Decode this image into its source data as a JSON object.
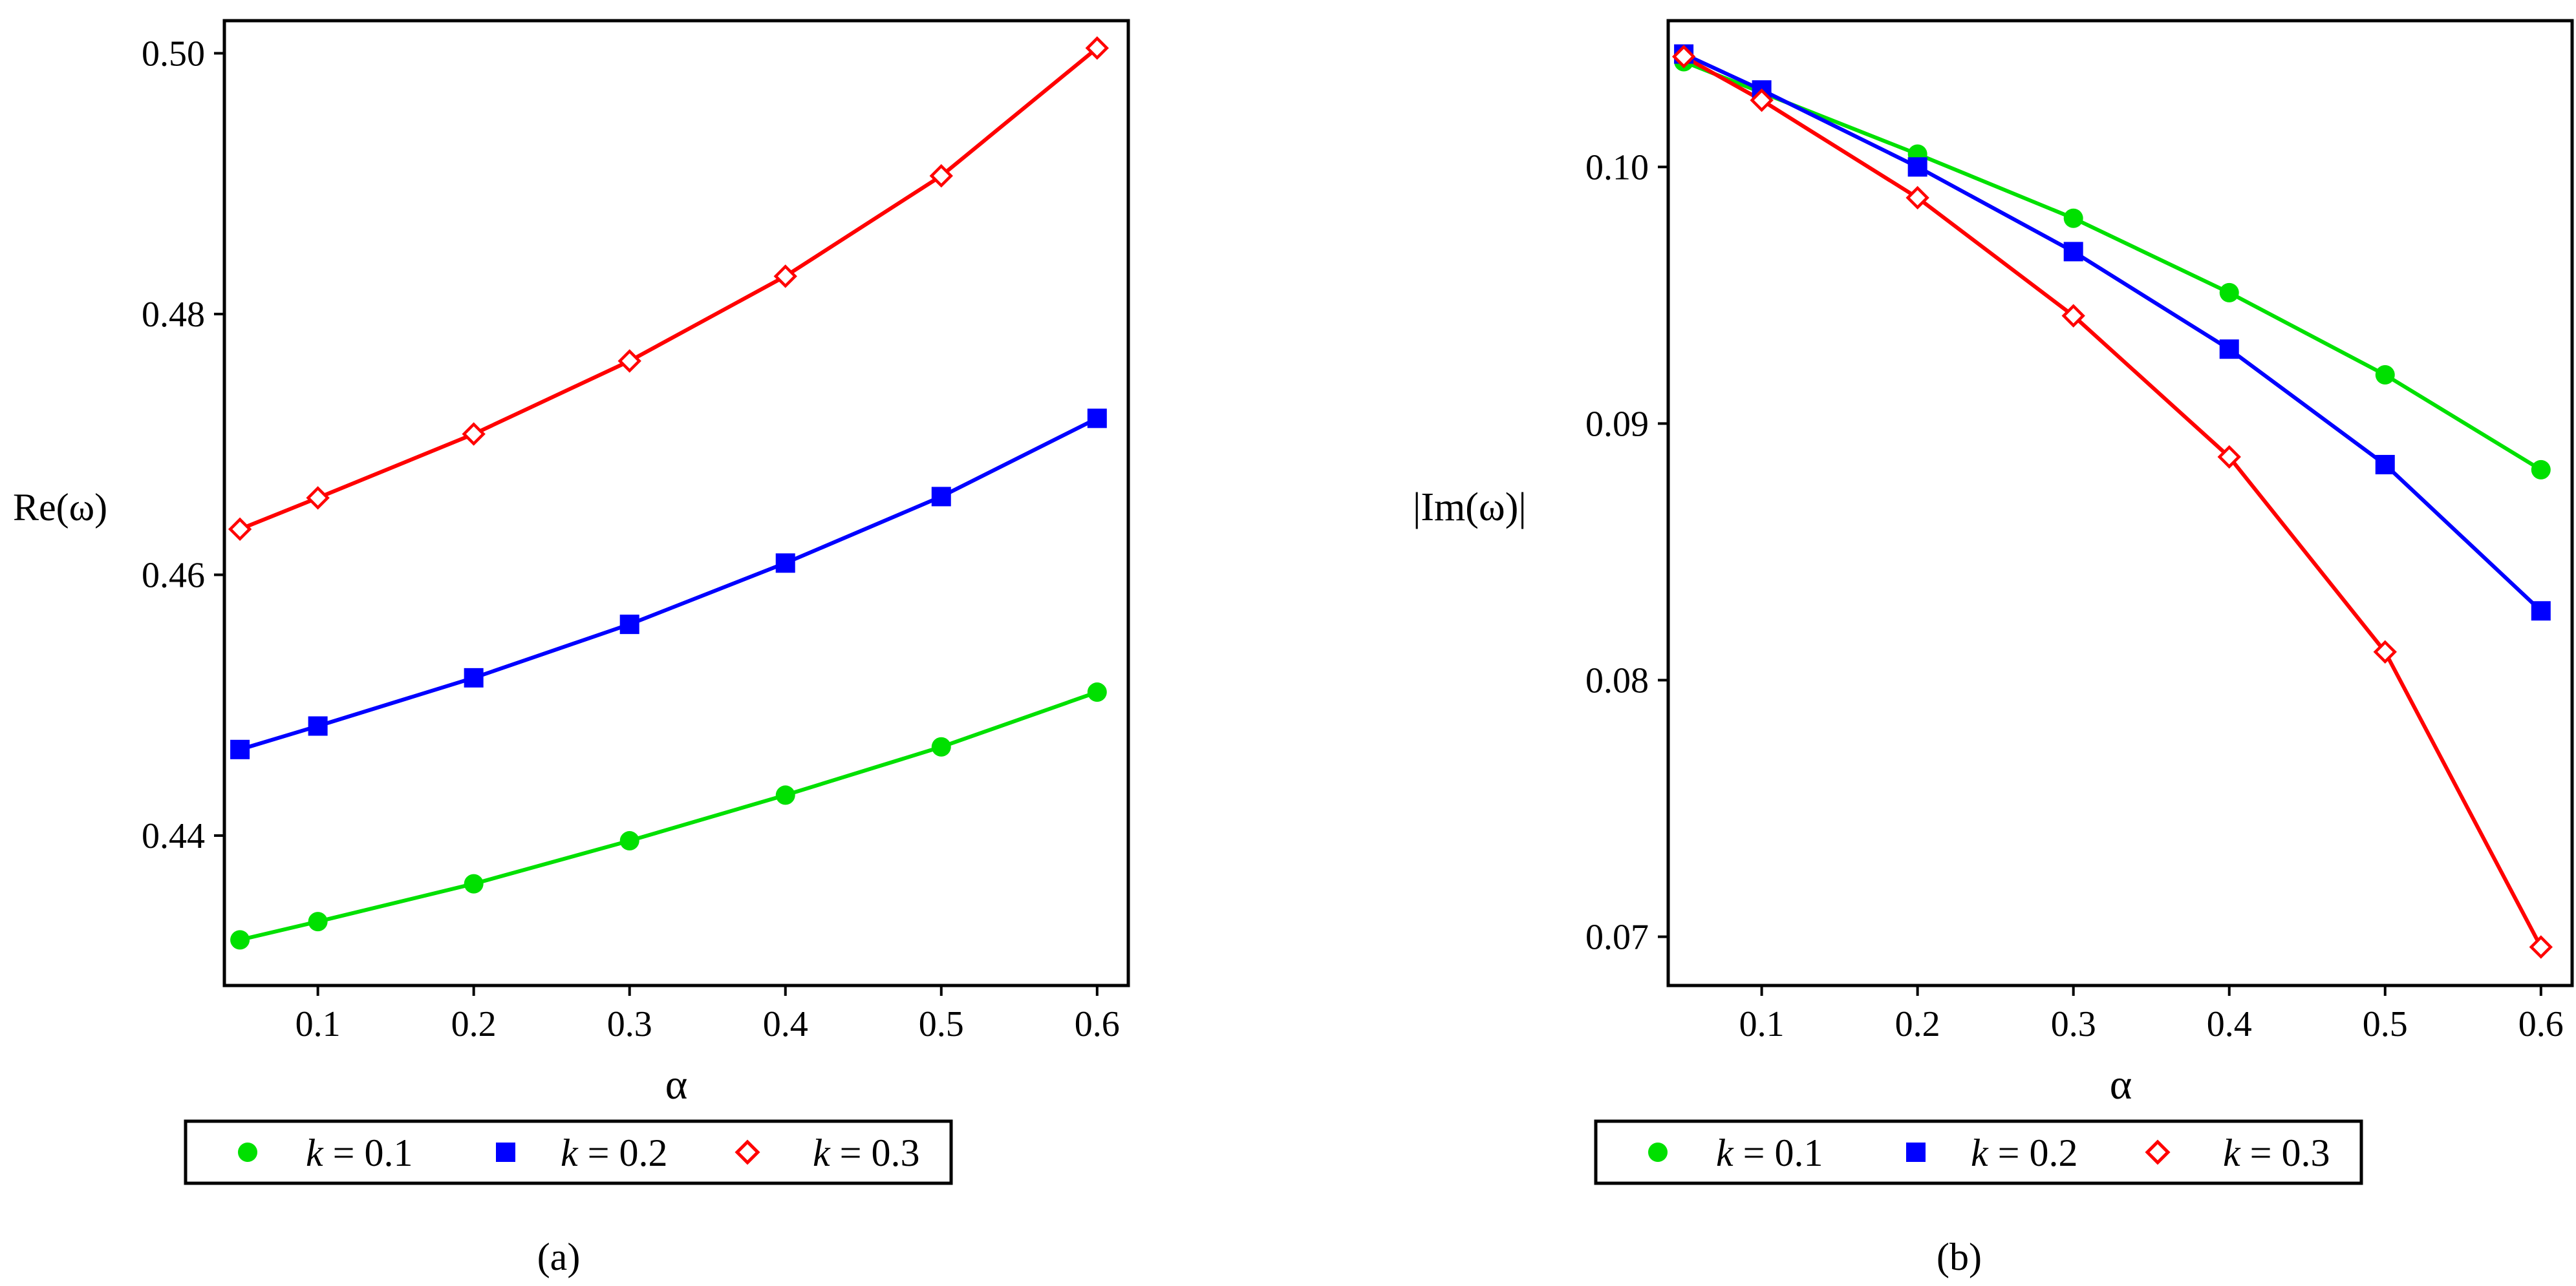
{
  "chart_data": [
    {
      "type": "line",
      "panel_label": "(a)",
      "xlabel": "α",
      "ylabel": "Re(ω)",
      "xlim": [
        0.04,
        0.62
      ],
      "ylim": [
        0.4285,
        0.5025
      ],
      "xticks": [
        0.1,
        0.2,
        0.3,
        0.4,
        0.5,
        0.6
      ],
      "xtick_labels": [
        "0.1",
        "0.2",
        "0.3",
        "0.4",
        "0.5",
        "0.6"
      ],
      "yticks": [
        0.44,
        0.46,
        0.48,
        0.5
      ],
      "ytick_labels": [
        "0.44",
        "0.46",
        "0.48",
        "0.50"
      ],
      "x": [
        0.05,
        0.1,
        0.2,
        0.3,
        0.4,
        0.5,
        0.6
      ],
      "series": [
        {
          "name": "k = 0.1",
          "k_symbol": "k",
          "k_rest": " = 0.1",
          "color": "#00e000",
          "marker": "circle",
          "values": [
            0.432,
            0.4334,
            0.4363,
            0.4396,
            0.4431,
            0.4468,
            0.451
          ]
        },
        {
          "name": "k = 0.2",
          "k_symbol": "k",
          "k_rest": " = 0.2",
          "color": "#0000ff",
          "marker": "square",
          "values": [
            0.4466,
            0.4484,
            0.4521,
            0.4562,
            0.4609,
            0.466,
            0.472
          ]
        },
        {
          "name": "k = 0.3",
          "k_symbol": "k",
          "k_rest": " = 0.3",
          "color": "#ff0000",
          "marker": "diamond",
          "values": [
            0.4635,
            0.4659,
            0.4708,
            0.4764,
            0.4829,
            0.4906,
            0.5004
          ]
        }
      ]
    },
    {
      "type": "line",
      "panel_label": "(b)",
      "xlabel": "α",
      "ylabel": "|Im(ω)|",
      "xlim": [
        0.04,
        0.62
      ],
      "ylim": [
        0.0681,
        0.1057
      ],
      "xticks": [
        0.1,
        0.2,
        0.3,
        0.4,
        0.5,
        0.6
      ],
      "xtick_labels": [
        "0.1",
        "0.2",
        "0.3",
        "0.4",
        "0.5",
        "0.6"
      ],
      "yticks": [
        0.07,
        0.08,
        0.09,
        0.1
      ],
      "ytick_labels": [
        "0.07",
        "0.08",
        "0.09",
        "0.10"
      ],
      "x": [
        0.05,
        0.1,
        0.2,
        0.3,
        0.4,
        0.5,
        0.6
      ],
      "series": [
        {
          "name": "k = 0.1",
          "k_symbol": "k",
          "k_rest": " = 0.1",
          "color": "#00e000",
          "marker": "circle",
          "values": [
            0.1041,
            0.1029,
            0.1005,
            0.098,
            0.0951,
            0.0919,
            0.0882
          ]
        },
        {
          "name": "k = 0.2",
          "k_symbol": "k",
          "k_rest": " = 0.2",
          "color": "#0000ff",
          "marker": "square",
          "values": [
            0.1044,
            0.103,
            0.1,
            0.0967,
            0.0929,
            0.0884,
            0.0827
          ]
        },
        {
          "name": "k = 0.3",
          "k_symbol": "k",
          "k_rest": " = 0.3",
          "color": "#ff0000",
          "marker": "diamond",
          "values": [
            0.1043,
            0.1026,
            0.0988,
            0.0942,
            0.0887,
            0.0811,
            0.0696
          ]
        }
      ]
    }
  ]
}
